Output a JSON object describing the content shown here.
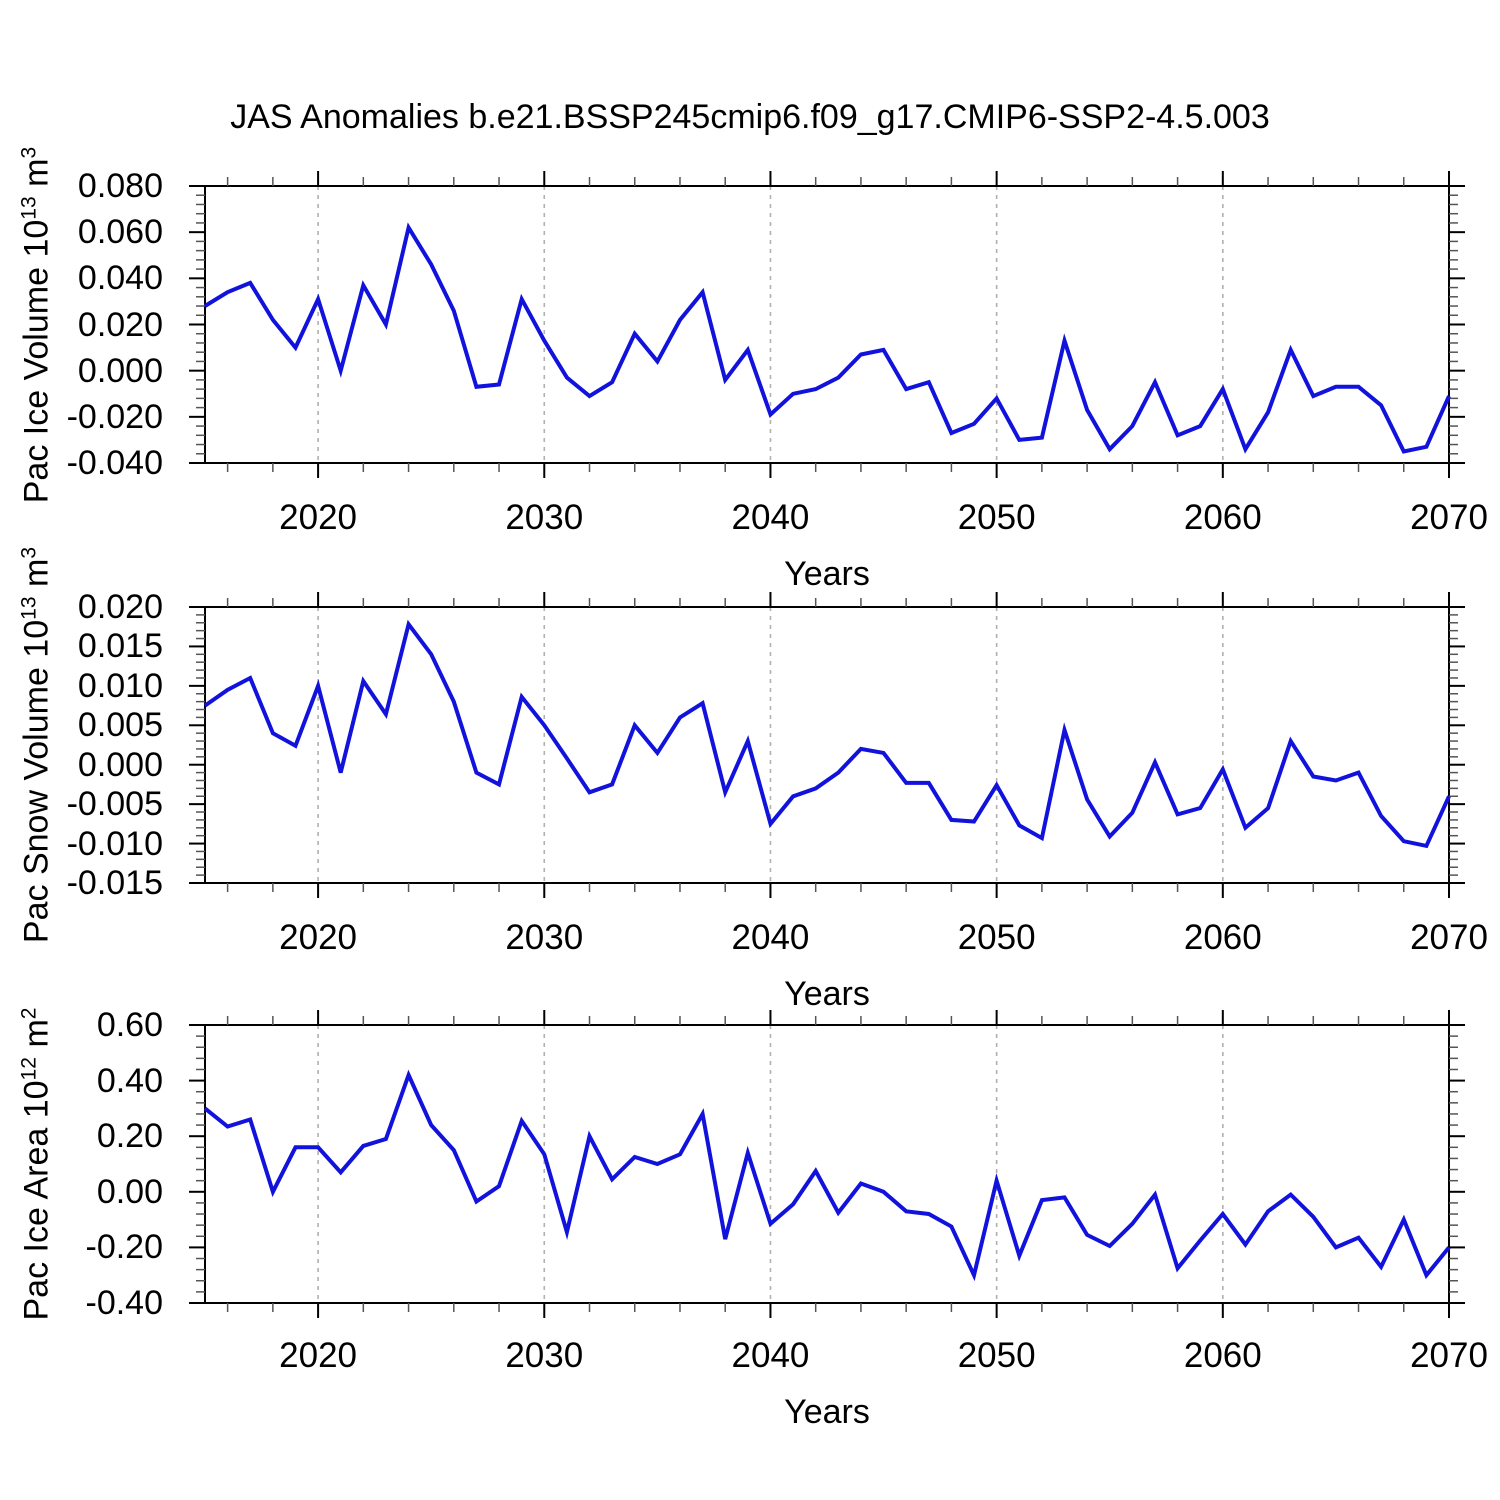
{
  "title": "JAS Anomalies b.e21.BSSP245cmip6.f09_g17.CMIP6-SSP2-4.5.003",
  "line_color": "#1212dd",
  "grid_color": "#b0b0b0",
  "chart_data": [
    {
      "type": "line",
      "title": "JAS Anomalies b.e21.BSSP245cmip6.f09_g17.CMIP6-SSP2-4.5.003",
      "ylabel": "Pac Ice Volume 10^{13} m^{3}",
      "xlabel": "Years",
      "x": {
        "min": 2015,
        "max": 2070,
        "ticks": [
          2020,
          2030,
          2040,
          2050,
          2060,
          2070
        ],
        "tick_labels": [
          "2020",
          "2030",
          "2040",
          "2050",
          "2060",
          "2070"
        ],
        "minor_step": 2,
        "grid_lines": [
          2020,
          2030,
          2040,
          2050,
          2060
        ]
      },
      "y": {
        "min": -0.04,
        "max": 0.08,
        "ticks": [
          0.08,
          0.06,
          0.04,
          0.02,
          0.0,
          -0.02,
          -0.04
        ],
        "tick_labels": [
          "0.080",
          "0.060",
          "0.040",
          "0.020",
          "0.000",
          "-0.020",
          "-0.040"
        ],
        "minor_step": 0.004
      },
      "series": [
        {
          "name": "Pac Ice Volume anomaly",
          "x_start": 2015,
          "x_step": 1,
          "values": [
            0.028,
            0.034,
            0.038,
            0.022,
            0.01,
            0.031,
            0.0,
            0.037,
            0.02,
            0.062,
            0.046,
            0.026,
            -0.007,
            -0.006,
            0.031,
            0.013,
            -0.003,
            -0.011,
            -0.005,
            0.016,
            0.004,
            0.022,
            0.034,
            -0.004,
            0.009,
            -0.019,
            -0.01,
            -0.008,
            -0.003,
            0.007,
            0.009,
            -0.008,
            -0.005,
            -0.027,
            -0.023,
            -0.012,
            -0.03,
            -0.029,
            0.013,
            -0.017,
            -0.034,
            -0.024,
            -0.005,
            -0.028,
            -0.024,
            -0.008,
            -0.034,
            -0.018,
            0.009,
            -0.011,
            -0.007,
            -0.007,
            -0.015,
            -0.035,
            -0.033,
            -0.011
          ]
        }
      ]
    },
    {
      "type": "line",
      "ylabel": "Pac Snow Volume 10^{13} m^{3}",
      "xlabel": "Years",
      "x": {
        "min": 2015,
        "max": 2070,
        "ticks": [
          2020,
          2030,
          2040,
          2050,
          2060,
          2070
        ],
        "tick_labels": [
          "2020",
          "2030",
          "2040",
          "2050",
          "2060",
          "2070"
        ],
        "minor_step": 2,
        "grid_lines": [
          2020,
          2030,
          2040,
          2050,
          2060
        ]
      },
      "y": {
        "min": -0.015,
        "max": 0.02,
        "ticks": [
          0.02,
          0.015,
          0.01,
          0.005,
          0.0,
          -0.005,
          -0.01,
          -0.015
        ],
        "tick_labels": [
          "0.020",
          "0.015",
          "0.010",
          "0.005",
          "0.000",
          "-0.005",
          "-0.010",
          "-0.015"
        ],
        "minor_step": 0.001
      },
      "series": [
        {
          "name": "Pac Snow Volume anomaly",
          "x_start": 2015,
          "x_step": 1,
          "values": [
            0.0075,
            0.0095,
            0.011,
            0.004,
            0.0024,
            0.01,
            -0.001,
            0.0106,
            0.0064,
            0.0178,
            0.014,
            0.008,
            -0.001,
            -0.0025,
            0.0086,
            0.005,
            0.0008,
            -0.0035,
            -0.0025,
            0.005,
            0.0015,
            0.006,
            0.0078,
            -0.0035,
            0.003,
            -0.0075,
            -0.004,
            -0.003,
            -0.001,
            0.002,
            0.0015,
            -0.0023,
            -0.0023,
            -0.007,
            -0.0072,
            -0.0026,
            -0.0077,
            -0.0093,
            0.0044,
            -0.0044,
            -0.0091,
            -0.0061,
            0.0003,
            -0.0063,
            -0.0055,
            -0.0006,
            -0.008,
            -0.0055,
            0.003,
            -0.0015,
            -0.002,
            -0.001,
            -0.0065,
            -0.0097,
            -0.0103,
            -0.004
          ]
        }
      ]
    },
    {
      "type": "line",
      "ylabel": "Pac Ice Area 10^{12} m^{2}",
      "xlabel": "Years",
      "x": {
        "min": 2015,
        "max": 2070,
        "ticks": [
          2020,
          2030,
          2040,
          2050,
          2060,
          2070
        ],
        "tick_labels": [
          "2020",
          "2030",
          "2040",
          "2050",
          "2060",
          "2070"
        ],
        "minor_step": 2,
        "grid_lines": [
          2020,
          2030,
          2040,
          2050,
          2060
        ]
      },
      "y": {
        "min": -0.4,
        "max": 0.6,
        "ticks": [
          0.6,
          0.4,
          0.2,
          0.0,
          -0.2,
          -0.4
        ],
        "tick_labels": [
          "0.60",
          "0.40",
          "0.20",
          "0.00",
          "-0.20",
          "-0.40"
        ],
        "minor_step": 0.04
      },
      "series": [
        {
          "name": "Pac Ice Area anomaly",
          "x_start": 2015,
          "x_step": 1,
          "values": [
            0.3,
            0.235,
            0.26,
            0.0,
            0.16,
            0.16,
            0.07,
            0.165,
            0.19,
            0.42,
            0.24,
            0.15,
            -0.035,
            0.02,
            0.255,
            0.135,
            -0.145,
            0.2,
            0.045,
            0.125,
            0.1,
            0.135,
            0.28,
            -0.17,
            0.14,
            -0.115,
            -0.045,
            0.075,
            -0.075,
            0.03,
            0.0,
            -0.07,
            -0.08,
            -0.125,
            -0.3,
            0.04,
            -0.23,
            -0.03,
            -0.02,
            -0.155,
            -0.195,
            -0.115,
            -0.01,
            -0.275,
            -0.175,
            -0.08,
            -0.19,
            -0.07,
            -0.01,
            -0.09,
            -0.2,
            -0.165,
            -0.27,
            -0.1,
            -0.3,
            -0.2
          ]
        }
      ]
    }
  ]
}
